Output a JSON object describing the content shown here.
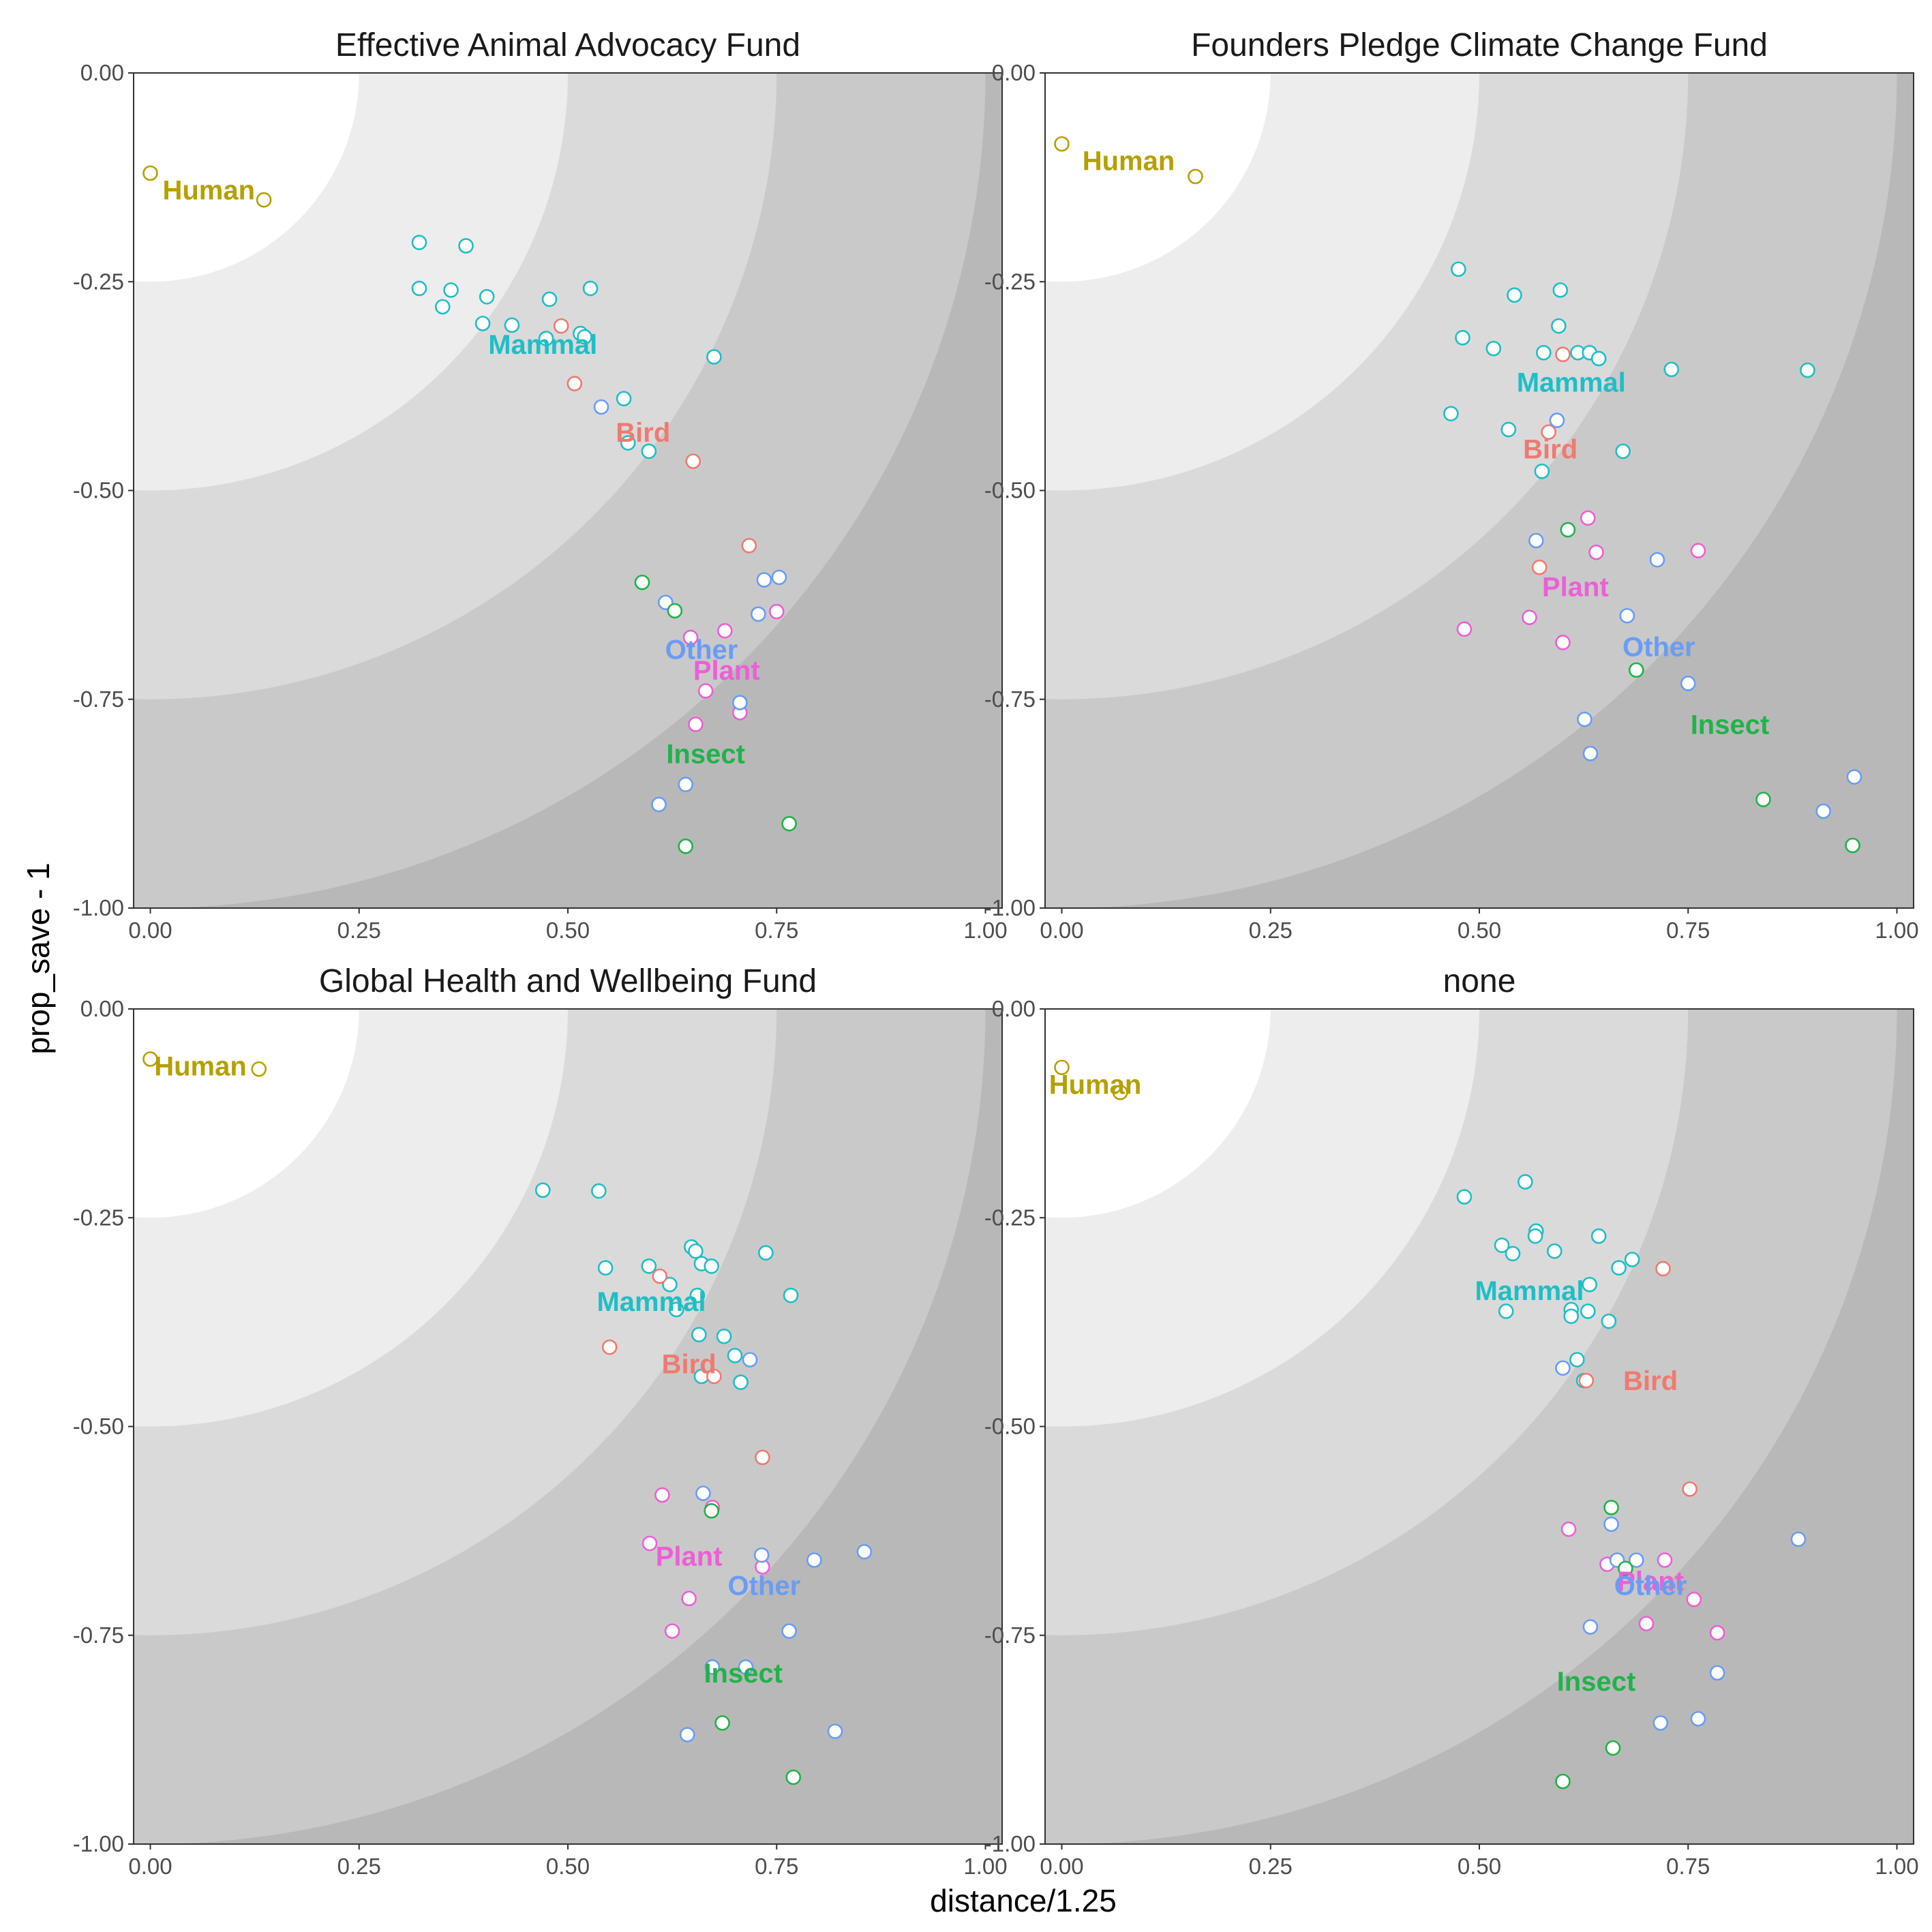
{
  "chart_data": {
    "type": "scatter",
    "xlabel": "distance/1.25",
    "ylabel": "prop_save - 1",
    "xlim": [
      -0.02,
      1.02
    ],
    "ylim": [
      -1.0,
      0.0
    ],
    "x_ticks": [
      "0.00",
      "0.25",
      "0.50",
      "0.75",
      "1.00"
    ],
    "y_ticks": [
      "0.00",
      "-0.25",
      "-0.50",
      "-0.75",
      "-1.00"
    ],
    "background_bands": {
      "radii": [
        0.25,
        0.5,
        0.75,
        1.0
      ],
      "colors": [
        "#ffffff",
        "#ededed",
        "#dadada",
        "#c9c9c9",
        "#b8b8b8"
      ]
    },
    "colors": {
      "Human": "#b5a000",
      "Mammal": "#1fbec6",
      "Bird": "#ef7a70",
      "Plant": "#ec5fd6",
      "Other": "#6a9cf4",
      "Insect": "#21b24a"
    },
    "groups": [
      "Human",
      "Mammal",
      "Bird",
      "Plant",
      "Other",
      "Insect"
    ],
    "panels": [
      {
        "title": "Effective Animal Advocacy Fund",
        "labels": [
          {
            "group": "Human",
            "x": 0.07,
            "y": -0.14
          },
          {
            "group": "Mammal",
            "x": 0.47,
            "y": -0.325
          },
          {
            "group": "Bird",
            "x": 0.59,
            "y": -0.43
          },
          {
            "group": "Other",
            "x": 0.66,
            "y": -0.69
          },
          {
            "group": "Plant",
            "x": 0.69,
            "y": -0.715
          },
          {
            "group": "Insect",
            "x": 0.665,
            "y": -0.815
          }
        ],
        "points": {
          "Human": [
            [
              0.0,
              -0.12
            ],
            [
              0.136,
              -0.152
            ]
          ],
          "Mammal": [
            [
              0.322,
              -0.203
            ],
            [
              0.378,
              -0.207
            ],
            [
              0.322,
              -0.258
            ],
            [
              0.36,
              -0.26
            ],
            [
              0.403,
              -0.268
            ],
            [
              0.35,
              -0.28
            ],
            [
              0.478,
              -0.271
            ],
            [
              0.527,
              -0.258
            ],
            [
              0.398,
              -0.3
            ],
            [
              0.433,
              -0.302
            ],
            [
              0.474,
              -0.318
            ],
            [
              0.515,
              -0.312
            ],
            [
              0.52,
              -0.316
            ],
            [
              0.675,
              -0.34
            ],
            [
              0.567,
              -0.39
            ],
            [
              0.572,
              -0.443
            ],
            [
              0.597,
              -0.453
            ]
          ],
          "Bird": [
            [
              0.492,
              -0.303
            ],
            [
              0.508,
              -0.372
            ],
            [
              0.65,
              -0.465
            ],
            [
              0.717,
              -0.566
            ]
          ],
          "Plant": [
            [
              0.688,
              -0.668
            ],
            [
              0.647,
              -0.676
            ],
            [
              0.75,
              -0.645
            ],
            [
              0.665,
              -0.74
            ],
            [
              0.706,
              -0.766
            ],
            [
              0.653,
              -0.78
            ]
          ],
          "Other": [
            [
              0.54,
              -0.4
            ],
            [
              0.617,
              -0.634
            ],
            [
              0.735,
              -0.607
            ],
            [
              0.753,
              -0.604
            ],
            [
              0.728,
              -0.648
            ],
            [
              0.706,
              -0.754
            ],
            [
              0.641,
              -0.852
            ],
            [
              0.609,
              -0.876
            ]
          ],
          "Insect": [
            [
              0.589,
              -0.61
            ],
            [
              0.628,
              -0.644
            ],
            [
              0.765,
              -0.899
            ],
            [
              0.641,
              -0.926
            ]
          ]
        }
      },
      {
        "title": "Founders Pledge Climate Change Fund",
        "labels": [
          {
            "group": "Human",
            "x": 0.08,
            "y": -0.105
          },
          {
            "group": "Mammal",
            "x": 0.61,
            "y": -0.37
          },
          {
            "group": "Bird",
            "x": 0.585,
            "y": -0.45
          },
          {
            "group": "Plant",
            "x": 0.615,
            "y": -0.615
          },
          {
            "group": "Other",
            "x": 0.715,
            "y": -0.687
          },
          {
            "group": "Insect",
            "x": 0.8,
            "y": -0.78
          }
        ],
        "points": {
          "Human": [
            [
              0.0,
              -0.085
            ],
            [
              0.16,
              -0.124
            ]
          ],
          "Mammal": [
            [
              0.475,
              -0.235
            ],
            [
              0.542,
              -0.266
            ],
            [
              0.597,
              -0.26
            ],
            [
              0.48,
              -0.317
            ],
            [
              0.517,
              -0.33
            ],
            [
              0.595,
              -0.303
            ],
            [
              0.577,
              -0.335
            ],
            [
              0.618,
              -0.335
            ],
            [
              0.632,
              -0.335
            ],
            [
              0.643,
              -0.342
            ],
            [
              0.73,
              -0.355
            ],
            [
              0.893,
              -0.356
            ],
            [
              0.466,
              -0.408
            ],
            [
              0.535,
              -0.427
            ],
            [
              0.575,
              -0.477
            ],
            [
              0.672,
              -0.453
            ]
          ],
          "Bird": [
            [
              0.6,
              -0.337
            ],
            [
              0.583,
              -0.43
            ],
            [
              0.572,
              -0.592
            ]
          ],
          "Plant": [
            [
              0.63,
              -0.533
            ],
            [
              0.64,
              -0.574
            ],
            [
              0.762,
              -0.572
            ],
            [
              0.482,
              -0.666
            ],
            [
              0.56,
              -0.652
            ],
            [
              0.6,
              -0.682
            ]
          ],
          "Other": [
            [
              0.593,
              -0.416
            ],
            [
              0.568,
              -0.56
            ],
            [
              0.713,
              -0.583
            ],
            [
              0.677,
              -0.65
            ],
            [
              0.75,
              -0.731
            ],
            [
              0.626,
              -0.774
            ],
            [
              0.633,
              -0.815
            ],
            [
              0.949,
              -0.843
            ],
            [
              0.912,
              -0.884
            ]
          ],
          "Insect": [
            [
              0.606,
              -0.547
            ],
            [
              0.688,
              -0.715
            ],
            [
              0.84,
              -0.87
            ],
            [
              0.947,
              -0.925
            ]
          ]
        }
      },
      {
        "title": "Global Health and Wellbeing Fund",
        "labels": [
          {
            "group": "Human",
            "x": 0.06,
            "y": -0.068
          },
          {
            "group": "Mammal",
            "x": 0.6,
            "y": -0.35
          },
          {
            "group": "Bird",
            "x": 0.645,
            "y": -0.425
          },
          {
            "group": "Plant",
            "x": 0.645,
            "y": -0.655
          },
          {
            "group": "Other",
            "x": 0.735,
            "y": -0.69
          },
          {
            "group": "Insect",
            "x": 0.71,
            "y": -0.795
          }
        ],
        "points": {
          "Human": [
            [
              0.0,
              -0.06
            ],
            [
              0.13,
              -0.072
            ]
          ],
          "Mammal": [
            [
              0.47,
              -0.217
            ],
            [
              0.537,
              -0.218
            ],
            [
              0.648,
              -0.285
            ],
            [
              0.653,
              -0.29
            ],
            [
              0.737,
              -0.292
            ],
            [
              0.545,
              -0.31
            ],
            [
              0.597,
              -0.308
            ],
            [
              0.66,
              -0.305
            ],
            [
              0.672,
              -0.308
            ],
            [
              0.622,
              -0.33
            ],
            [
              0.655,
              -0.343
            ],
            [
              0.767,
              -0.343
            ],
            [
              0.63,
              -0.36
            ],
            [
              0.657,
              -0.39
            ],
            [
              0.687,
              -0.392
            ],
            [
              0.7,
              -0.415
            ],
            [
              0.707,
              -0.447
            ],
            [
              0.66,
              -0.44
            ]
          ],
          "Bird": [
            [
              0.55,
              -0.405
            ],
            [
              0.61,
              -0.32
            ],
            [
              0.675,
              -0.44
            ],
            [
              0.733,
              -0.537
            ]
          ],
          "Plant": [
            [
              0.613,
              -0.582
            ],
            [
              0.673,
              -0.597
            ],
            [
              0.598,
              -0.64
            ],
            [
              0.733,
              -0.668
            ],
            [
              0.645,
              -0.706
            ],
            [
              0.625,
              -0.745
            ]
          ],
          "Other": [
            [
              0.718,
              -0.42
            ],
            [
              0.662,
              -0.58
            ],
            [
              0.732,
              -0.654
            ],
            [
              0.795,
              -0.66
            ],
            [
              0.855,
              -0.65
            ],
            [
              0.765,
              -0.745
            ],
            [
              0.713,
              -0.788
            ],
            [
              0.673,
              -0.788
            ],
            [
              0.643,
              -0.869
            ],
            [
              0.82,
              -0.865
            ]
          ],
          "Insect": [
            [
              0.672,
              -0.601
            ],
            [
              0.685,
              -0.855
            ],
            [
              0.77,
              -0.92
            ]
          ]
        }
      },
      {
        "title": "none",
        "labels": [
          {
            "group": "Human",
            "x": 0.04,
            "y": -0.09
          },
          {
            "group": "Mammal",
            "x": 0.56,
            "y": -0.337
          },
          {
            "group": "Bird",
            "x": 0.705,
            "y": -0.445
          },
          {
            "group": "Plant",
            "x": 0.705,
            "y": -0.685
          },
          {
            "group": "Other",
            "x": 0.705,
            "y": -0.69
          },
          {
            "group": "Insect",
            "x": 0.64,
            "y": -0.805
          }
        ],
        "points": {
          "Human": [
            [
              0.0,
              -0.07
            ],
            [
              0.07,
              -0.1
            ]
          ],
          "Mammal": [
            [
              0.555,
              -0.207
            ],
            [
              0.482,
              -0.225
            ],
            [
              0.568,
              -0.266
            ],
            [
              0.567,
              -0.272
            ],
            [
              0.527,
              -0.283
            ],
            [
              0.54,
              -0.293
            ],
            [
              0.59,
              -0.29
            ],
            [
              0.643,
              -0.272
            ],
            [
              0.667,
              -0.31
            ],
            [
              0.683,
              -0.3
            ],
            [
              0.632,
              -0.33
            ],
            [
              0.532,
              -0.362
            ],
            [
              0.61,
              -0.36
            ],
            [
              0.63,
              -0.362
            ],
            [
              0.61,
              -0.368
            ],
            [
              0.655,
              -0.374
            ],
            [
              0.617,
              -0.42
            ],
            [
              0.625,
              -0.445
            ]
          ],
          "Bird": [
            [
              0.72,
              -0.311
            ],
            [
              0.628,
              -0.445
            ],
            [
              0.752,
              -0.575
            ]
          ],
          "Plant": [
            [
              0.607,
              -0.623
            ],
            [
              0.653,
              -0.665
            ],
            [
              0.722,
              -0.66
            ],
            [
              0.757,
              -0.707
            ],
            [
              0.7,
              -0.736
            ],
            [
              0.785,
              -0.747
            ]
          ],
          "Other": [
            [
              0.6,
              -0.43
            ],
            [
              0.658,
              -0.617
            ],
            [
              0.665,
              -0.66
            ],
            [
              0.688,
              -0.66
            ],
            [
              0.882,
              -0.635
            ],
            [
              0.633,
              -0.74
            ],
            [
              0.785,
              -0.795
            ],
            [
              0.717,
              -0.855
            ],
            [
              0.762,
              -0.85
            ]
          ],
          "Insect": [
            [
              0.658,
              -0.597
            ],
            [
              0.675,
              -0.67
            ],
            [
              0.66,
              -0.885
            ],
            [
              0.6,
              -0.925
            ]
          ]
        }
      }
    ]
  }
}
